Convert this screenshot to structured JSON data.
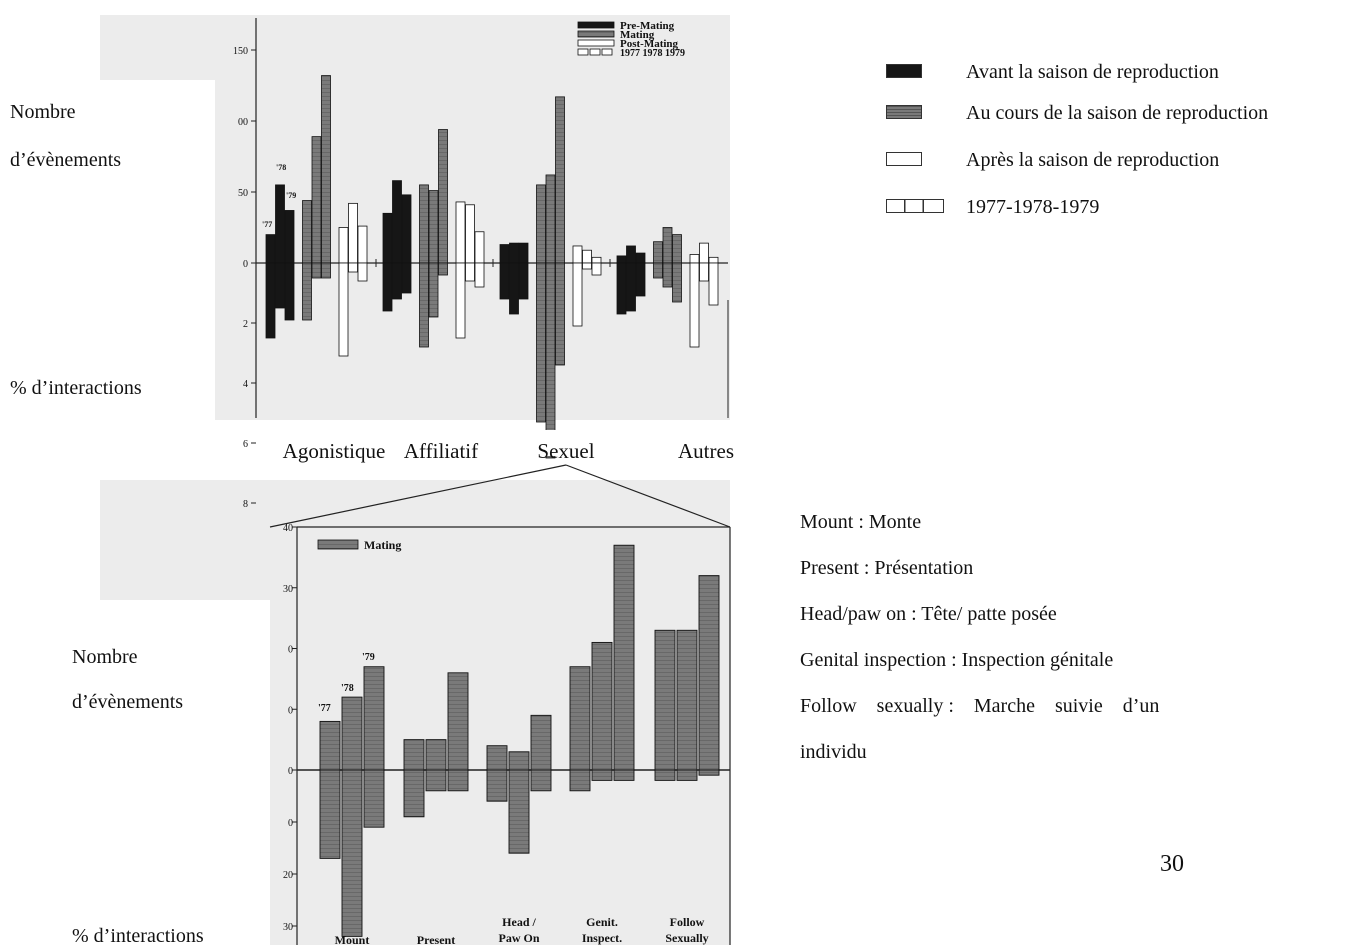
{
  "page_number": "30",
  "colors": {
    "pre": "#161616",
    "mating": "#7a7a7a",
    "post": "#ffffff",
    "axis": "#222222"
  },
  "top_chart": {
    "ylabel_top": [
      "Nombre",
      "d’évènements"
    ],
    "ylabel_bottom": "% d’interactions",
    "categories": [
      "Agonistique",
      "Affiliatif",
      "Sexuel",
      "Autres"
    ],
    "original_legend": [
      "Pre-Mating",
      "Mating",
      "Post-Mating",
      "1977 1978 1979"
    ],
    "year_labels": [
      "'77",
      "'78",
      "'79"
    ],
    "ticks_up": [
      "150",
      "00",
      "50",
      "0"
    ],
    "ticks_down": [
      "2",
      "4",
      "6",
      "8"
    ]
  },
  "bottom_chart": {
    "ylabel_top": [
      "Nombre",
      "d’évènements"
    ],
    "ylabel_bottom": "% d’interactions",
    "categories": [
      [
        "Mount"
      ],
      [
        "Present"
      ],
      [
        "Head /",
        "Paw  On"
      ],
      [
        "Genit.",
        "Inspect."
      ],
      [
        "Follow",
        "Sexually"
      ]
    ],
    "original_legend": [
      "Mating"
    ],
    "year_labels": [
      "'77",
      "'78",
      "'79"
    ],
    "ticks_up": [
      "40",
      "30",
      "0",
      "0",
      "0"
    ],
    "ticks_down": [
      "0",
      "20",
      "30"
    ]
  },
  "legend_fr": [
    {
      "label": "Avant la saison de reproduction",
      "swatch": "#161616"
    },
    {
      "label": "Au cours de la saison de reproduction",
      "swatch": "#7a7a7a"
    },
    {
      "label": "Après la saison de reproduction",
      "swatch": "#ffffff"
    },
    {
      "label": "1977-1978-1979",
      "swatch": "years"
    }
  ],
  "translations": [
    "Mount : Monte",
    "Present : Présentation",
    "Head/paw on : Tête/ patte posée",
    "Genital inspection : Inspection génitale",
    "Follow    sexually :    Marche    suivie    d’un",
    "individu"
  ],
  "chart_data": [
    {
      "type": "bar",
      "categories": [
        "Agonistique",
        "Affiliatif",
        "Sexuel",
        "Autres"
      ],
      "series": [
        {
          "name": "Pre-Mating",
          "values_events": [
            [
              20,
              55,
              37
            ],
            [
              35,
              58,
              48
            ],
            [
              13,
              14,
              14
            ],
            [
              5,
              12,
              7
            ]
          ],
          "values_pct": [
            [
              2.5,
              1.5,
              1.9
            ],
            [
              1.6,
              1.2,
              1.0
            ],
            [
              1.2,
              1.7,
              1.2
            ],
            [
              1.7,
              1.6,
              1.1
            ]
          ]
        },
        {
          "name": "Mating",
          "values_events": [
            [
              44,
              89,
              132
            ],
            [
              55,
              51,
              94
            ],
            [
              55,
              62,
              117
            ],
            [
              15,
              25,
              20
            ]
          ],
          "values_pct": [
            [
              1.9,
              0.5,
              0.5
            ],
            [
              2.8,
              1.8,
              0.4
            ],
            [
              5.3,
              6.5,
              3.4
            ],
            [
              0.5,
              0.8,
              1.3
            ]
          ]
        },
        {
          "name": "Post-Mating",
          "values_events": [
            [
              25,
              42,
              26
            ],
            [
              43,
              41,
              22
            ],
            [
              12,
              9,
              4
            ],
            [
              6,
              14,
              4
            ]
          ],
          "values_pct": [
            [
              3.1,
              0.3,
              0.6
            ],
            [
              2.5,
              0.6,
              0.8
            ],
            [
              2.1,
              0.2,
              0.4
            ],
            [
              2.8,
              0.6,
              1.4
            ]
          ]
        }
      ],
      "years": [
        "1977",
        "1978",
        "1979"
      ],
      "ylim_events": [
        0,
        150
      ],
      "ylim_pct": [
        0,
        8
      ]
    },
    {
      "type": "bar",
      "categories": [
        "Mount",
        "Present",
        "Head / Paw  On",
        "Genit. Inspect.",
        "Follow Sexually"
      ],
      "series": [
        {
          "name": "Mating",
          "values_events": [
            [
              8,
              12,
              17
            ],
            [
              5,
              5,
              16
            ],
            [
              4,
              3,
              9
            ],
            [
              17,
              21,
              37
            ],
            [
              23,
              23,
              32
            ]
          ],
          "values_pct": [
            [
              17,
              32,
              11
            ],
            [
              9,
              4,
              4
            ],
            [
              6,
              16,
              4
            ],
            [
              4,
              2,
              2
            ],
            [
              2,
              2,
              1
            ]
          ]
        }
      ],
      "years": [
        "1977",
        "1978",
        "1979"
      ],
      "ylim_events": [
        0,
        40
      ],
      "ylim_pct": [
        0,
        34
      ]
    }
  ]
}
